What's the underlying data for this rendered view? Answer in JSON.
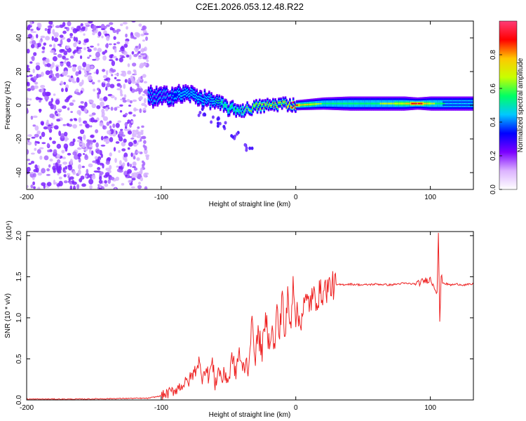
{
  "figure": {
    "title": "C2E1.2026.053.12.48.R22"
  },
  "chart_data": [
    {
      "type": "heatmap",
      "title": "",
      "xlabel": "Height of straight line (km)",
      "ylabel": "Frequency (Hz)",
      "xlim": [
        -200,
        132
      ],
      "ylim": [
        -50,
        50
      ],
      "x_ticks": [
        -200,
        -100,
        0,
        100
      ],
      "x_tick_labels": [
        "-200",
        "-100",
        "0",
        "100"
      ],
      "y_ticks": [
        -40,
        -20,
        0,
        20,
        40
      ],
      "y_tick_labels": [
        "-40",
        "-20",
        "0",
        "20",
        "40"
      ],
      "colorbar": {
        "label": "Normalized spectral amplitude",
        "range": [
          0,
          1
        ],
        "ticks": [
          0,
          0.2,
          0.4,
          0.6,
          0.8
        ],
        "tick_labels": [
          "0.0",
          "0.2",
          "0.4",
          "0.6",
          "0.8"
        ],
        "colors": [
          "#ffffff",
          "#dcb3ff",
          "#7c00ff",
          "#0000ff",
          "#00c8ff",
          "#00ff64",
          "#c8ff00",
          "#ffc800",
          "#ff0000",
          "#ff3c78"
        ]
      },
      "noise_region": {
        "x_start": -200,
        "x_end": -110,
        "f_min": -50,
        "f_max": 50,
        "amplitude": 0.12
      },
      "ridge": [
        {
          "x": -110,
          "f": 5,
          "width": 9,
          "amp": 0.28
        },
        {
          "x": -100,
          "f": 5,
          "width": 8,
          "amp": 0.35
        },
        {
          "x": -90,
          "f": 6,
          "width": 8,
          "amp": 0.38
        },
        {
          "x": -80,
          "f": 7,
          "width": 7,
          "amp": 0.42
        },
        {
          "x": -70,
          "f": 4,
          "width": 7,
          "amp": 0.45
        },
        {
          "x": -60,
          "f": 2,
          "width": 6,
          "amp": 0.5
        },
        {
          "x": -50,
          "f": -2,
          "width": 6,
          "amp": 0.55
        },
        {
          "x": -40,
          "f": -3,
          "width": 5,
          "amp": 0.6
        },
        {
          "x": -30,
          "f": -1,
          "width": 5,
          "amp": 0.7
        },
        {
          "x": -20,
          "f": 0,
          "width": 5,
          "amp": 0.75
        },
        {
          "x": -10,
          "f": 1,
          "width": 5,
          "amp": 0.8
        },
        {
          "x": 0,
          "f": 0,
          "width": 5,
          "amp": 0.85
        },
        {
          "x": 20,
          "f": 1,
          "width": 6,
          "amp": 0.6
        },
        {
          "x": 40,
          "f": 1,
          "width": 7,
          "amp": 0.55
        },
        {
          "x": 60,
          "f": 1,
          "width": 7,
          "amp": 0.6
        },
        {
          "x": 80,
          "f": 1,
          "width": 7,
          "amp": 0.7
        },
        {
          "x": 90,
          "f": 1,
          "width": 6,
          "amp": 0.95
        },
        {
          "x": 100,
          "f": 1,
          "width": 7,
          "amp": 0.65
        },
        {
          "x": 110,
          "f": 1,
          "width": 7,
          "amp": 0.5
        },
        {
          "x": 132,
          "f": 1,
          "width": 7,
          "amp": 0.45
        }
      ],
      "branch": [
        {
          "x": -70,
          "f": -4
        },
        {
          "x": -60,
          "f": -8
        },
        {
          "x": -55,
          "f": -12
        },
        {
          "x": -45,
          "f": -18
        },
        {
          "x": -35,
          "f": -25
        }
      ]
    },
    {
      "type": "line",
      "title": "",
      "xlabel": "Height of straight line (km)",
      "ylabel": "SNR (10 * v/v)",
      "y_scale_label": "(x10⁴)",
      "y_scale_factor": 10000,
      "xlim": [
        -200,
        132
      ],
      "ylim": [
        0,
        2.05
      ],
      "x_ticks": [
        -200,
        -100,
        0,
        100
      ],
      "x_tick_labels": [
        "-200",
        "-100",
        "0",
        "100"
      ],
      "y_ticks": [
        0,
        0.5,
        1.0,
        1.5,
        2.0
      ],
      "y_tick_labels": [
        "0.0",
        "0.5",
        "1.0",
        "1.5",
        "2.0"
      ],
      "series": [
        {
          "name": "SNR",
          "color": "#ee2222",
          "x": [
            -200,
            -180,
            -160,
            -140,
            -120,
            -110,
            -100,
            -95,
            -90,
            -85,
            -80,
            -75,
            -72,
            -70,
            -68,
            -65,
            -62,
            -60,
            -57,
            -55,
            -52,
            -50,
            -47,
            -45,
            -42,
            -40,
            -37,
            -35,
            -33,
            -30,
            -28,
            -25,
            -22,
            -20,
            -18,
            -16,
            -14,
            -12,
            -10,
            -8,
            -6,
            -4,
            -2,
            0,
            3,
            6,
            10,
            15,
            20,
            25,
            30,
            40,
            50,
            60,
            70,
            80,
            90,
            95,
            100,
            103,
            105,
            106,
            107,
            108,
            110,
            115,
            120,
            125,
            132
          ],
          "values": [
            0.01,
            0.01,
            0.01,
            0.015,
            0.02,
            0.02,
            0.05,
            0.08,
            0.12,
            0.18,
            0.22,
            0.35,
            0.48,
            0.25,
            0.4,
            0.3,
            0.45,
            0.2,
            0.38,
            0.25,
            0.32,
            0.22,
            0.55,
            0.3,
            0.6,
            0.35,
            0.45,
            0.4,
            0.95,
            0.55,
            0.8,
            0.6,
            1.0,
            0.7,
            0.9,
            0.6,
            1.1,
            0.75,
            1.4,
            0.65,
            1.3,
            0.85,
            1.5,
            1.05,
            0.95,
            1.15,
            1.2,
            1.25,
            1.32,
            1.38,
            1.4,
            1.41,
            1.4,
            1.41,
            1.4,
            1.42,
            1.41,
            1.45,
            1.47,
            1.38,
            1.32,
            2.05,
            0.92,
            1.5,
            1.42,
            1.4,
            1.41,
            1.4,
            1.41
          ]
        }
      ]
    }
  ]
}
